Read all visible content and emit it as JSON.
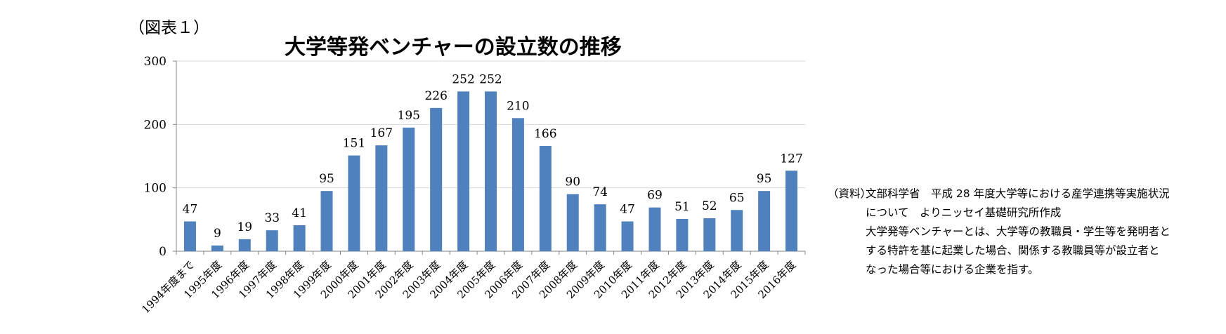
{
  "figure_label": "（図表１）",
  "chart_data": {
    "type": "bar",
    "title": "大学等発ベンチャーの設立数の推移",
    "xlabel": "",
    "ylabel": "",
    "ylim": [
      0,
      300
    ],
    "yticks": [
      0,
      100,
      200,
      300
    ],
    "grid": true,
    "bar_color": "#4f81bd",
    "categories": [
      "1994年度まで",
      "1995年度",
      "1996年度",
      "1997年度",
      "1998年度",
      "1999年度",
      "2000年度",
      "2001年度",
      "2002年度",
      "2003年度",
      "2004年度",
      "2005年度",
      "2006年度",
      "2007年度",
      "2008年度",
      "2009年度",
      "2010年度",
      "2011年度",
      "2012年度",
      "2013年度",
      "2014年度",
      "2015年度",
      "2016年度"
    ],
    "values": [
      47,
      9,
      19,
      33,
      41,
      95,
      151,
      167,
      195,
      226,
      252,
      252,
      210,
      166,
      90,
      74,
      47,
      69,
      51,
      52,
      65,
      95,
      127
    ]
  },
  "source": {
    "tag": "（資料）",
    "lines": [
      "文部科学省　平成 28 年度大学等における産学連携等実施状況",
      "について　よりニッセイ基礎研究所作成",
      "大学発等ベンチャーとは、大学等の教職員・学生等を発明者と",
      "する特許を基に起業した場合、関係する教職員等が設立者と",
      "なった場合等における企業を指す。"
    ]
  }
}
